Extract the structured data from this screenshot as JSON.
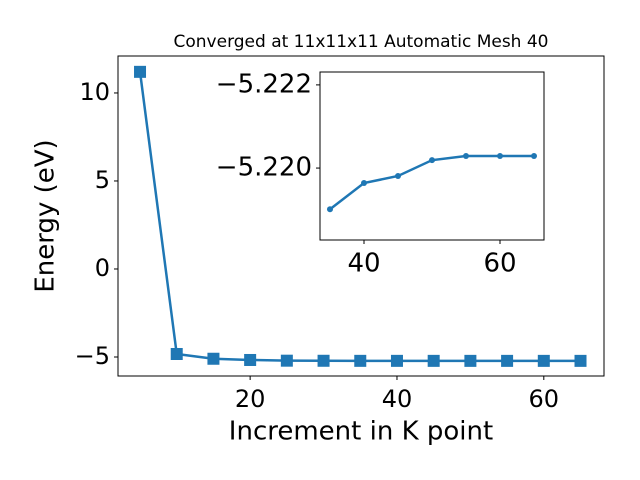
{
  "chart_data": [
    {
      "type": "line",
      "title": "Converged at 11x11x11 Automatic Mesh 40",
      "xlabel": "Increment in K point",
      "ylabel": "Energy (eV)",
      "x": [
        5,
        10,
        15,
        20,
        25,
        30,
        35,
        40,
        45,
        50,
        55,
        60,
        65
      ],
      "series": [
        {
          "color": "#1f77b4",
          "marker": "square",
          "values": [
            11.2,
            -4.83,
            -5.1,
            -5.17,
            -5.21,
            -5.215,
            -5.219,
            -5.2196,
            -5.2198,
            -5.2202,
            -5.2203,
            -5.2203,
            -5.2203
          ]
        }
      ],
      "xlim": [
        2,
        68.2
      ],
      "ylim": [
        -6.08,
        12.1
      ],
      "xticks": [
        20,
        40,
        60
      ],
      "yticks": [
        {
          "value": -5,
          "label": "−5"
        },
        0,
        5,
        10
      ]
    },
    {
      "type": "line",
      "x": [
        35,
        40,
        45,
        50,
        55,
        60,
        65
      ],
      "series": [
        {
          "color": "#1f77b4",
          "marker": "circle",
          "values": [
            -5.21901,
            -5.21964,
            -5.21981,
            -5.22019,
            -5.22029,
            -5.22029,
            -5.22029
          ]
        }
      ],
      "xlim": [
        33.53,
        66.47
      ],
      "ylim": [
        -5.21827,
        -5.22231
      ],
      "xticks": [
        40,
        60
      ],
      "yticks": [
        {
          "value": -5.22,
          "label": "−5.220"
        },
        {
          "value": -5.222,
          "label": "−5.222"
        }
      ]
    }
  ]
}
